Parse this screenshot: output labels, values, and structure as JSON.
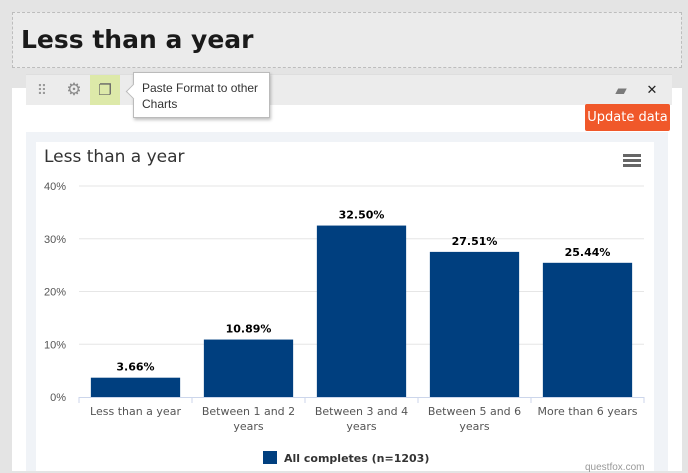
{
  "page": {
    "heading": "Less than a year"
  },
  "toolbar": {
    "drag_glyph": "⠿",
    "settings_glyph": "⚙",
    "paste_glyph": "❐",
    "copy_glyph": "▰",
    "close_glyph": "✕",
    "tooltip": "Paste Format to other Charts"
  },
  "update_button": "Update data",
  "credit": "questfox.com",
  "colors": {
    "bar": "#003f7f",
    "update": "#f0582a",
    "highlight": "#dde9a9"
  },
  "chart_data": {
    "type": "bar",
    "title": "Less than a year",
    "categories": [
      "Less than a year",
      "Between 1 and 2 years",
      "Between 3 and 4 years",
      "Between 5 and 6 years",
      "More than 6 years"
    ],
    "category_lines": [
      [
        "Less than a year"
      ],
      [
        "Between 1 and 2",
        "years"
      ],
      [
        "Between 3 and 4",
        "years"
      ],
      [
        "Between 5 and 6",
        "years"
      ],
      [
        "More than 6 years"
      ]
    ],
    "series": [
      {
        "name": "All completes (n=1203)",
        "values": [
          3.66,
          10.89,
          32.5,
          27.51,
          25.44
        ]
      }
    ],
    "data_labels": [
      "3.66%",
      "10.89%",
      "32.50%",
      "27.51%",
      "25.44%"
    ],
    "yticks": [
      "0%",
      "10%",
      "20%",
      "30%",
      "40%"
    ],
    "ylim": [
      0,
      40
    ],
    "grid": true,
    "legend_position": "bottom"
  }
}
